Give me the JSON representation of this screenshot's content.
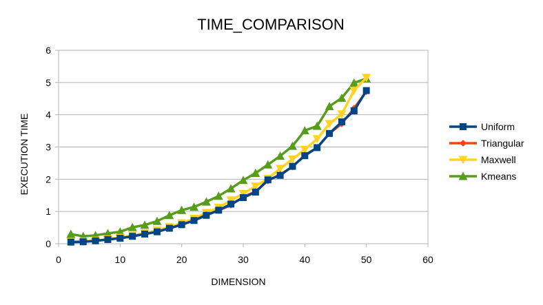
{
  "chart_data": {
    "type": "line",
    "title": "TIME_COMPARISON",
    "xlabel": "DIMENSION",
    "ylabel": "EXECUTION TIME",
    "xlim": [
      0,
      60
    ],
    "ylim": [
      0,
      6
    ],
    "xticks": [
      0,
      10,
      20,
      30,
      40,
      50,
      60
    ],
    "yticks": [
      0,
      1,
      2,
      3,
      4,
      5,
      6
    ],
    "grid": "horizontal",
    "legend_position": "right",
    "x": [
      2,
      4,
      6,
      8,
      10,
      12,
      14,
      16,
      18,
      20,
      22,
      24,
      26,
      28,
      30,
      32,
      34,
      36,
      38,
      40,
      42,
      44,
      46,
      48,
      50
    ],
    "series": [
      {
        "name": "Uniform",
        "color": "#004586",
        "marker": "square",
        "values": [
          0.05,
          0.06,
          0.09,
          0.13,
          0.17,
          0.23,
          0.3,
          0.37,
          0.48,
          0.59,
          0.72,
          0.88,
          1.04,
          1.23,
          1.43,
          1.6,
          1.98,
          2.12,
          2.4,
          2.73,
          2.98,
          3.42,
          3.78,
          4.12,
          4.75
        ]
      },
      {
        "name": "Triangular",
        "color": "#ff420e",
        "marker": "diamond",
        "values": [
          0.05,
          0.06,
          0.09,
          0.13,
          0.17,
          0.23,
          0.3,
          0.37,
          0.48,
          0.59,
          0.72,
          0.9,
          1.03,
          1.2,
          1.45,
          1.62,
          1.95,
          2.15,
          2.38,
          2.75,
          2.98,
          3.42,
          3.72,
          4.2,
          4.72
        ]
      },
      {
        "name": "Maxwell",
        "color": "#ffd320",
        "marker": "triangle-down",
        "values": [
          0.06,
          0.07,
          0.1,
          0.14,
          0.19,
          0.26,
          0.33,
          0.42,
          0.52,
          0.64,
          0.78,
          0.96,
          1.12,
          1.35,
          1.55,
          1.78,
          2.02,
          2.33,
          2.62,
          2.92,
          3.25,
          3.72,
          4.02,
          4.75,
          5.15
        ]
      },
      {
        "name": "Kmeans",
        "color": "#579d1c",
        "marker": "triangle-up",
        "values": [
          0.3,
          0.23,
          0.26,
          0.32,
          0.37,
          0.51,
          0.58,
          0.7,
          0.88,
          1.04,
          1.14,
          1.3,
          1.48,
          1.71,
          1.97,
          2.19,
          2.45,
          2.72,
          3.03,
          3.51,
          3.65,
          4.26,
          4.52,
          4.99,
          5.12
        ]
      }
    ]
  }
}
